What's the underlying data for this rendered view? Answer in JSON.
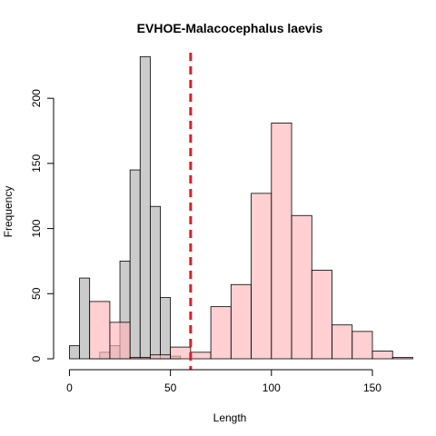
{
  "chart_data": {
    "type": "bar",
    "title": "EVHOE-Malacocephalus laevis",
    "xlabel": "Length",
    "ylabel": "Frequency",
    "xlim": [
      -2,
      168
    ],
    "ylim": [
      0,
      235
    ],
    "x_ticks": [
      0,
      50,
      100,
      150
    ],
    "y_ticks": [
      0,
      50,
      100,
      150,
      200
    ],
    "vline": {
      "x": 60,
      "color": "#e8191e",
      "style": "dashed"
    },
    "series": [
      {
        "fill": "#bebebe",
        "alpha": 0.8,
        "bins": [
          {
            "x0": 0,
            "x1": 5,
            "value": 10
          },
          {
            "x0": 5,
            "x1": 10,
            "value": 62
          },
          {
            "x0": 10,
            "x1": 15,
            "value": 0
          },
          {
            "x0": 15,
            "x1": 20,
            "value": 5
          },
          {
            "x0": 20,
            "x1": 25,
            "value": 10
          },
          {
            "x0": 25,
            "x1": 30,
            "value": 75
          },
          {
            "x0": 30,
            "x1": 35,
            "value": 145
          },
          {
            "x0": 35,
            "x1": 40,
            "value": 232
          },
          {
            "x0": 40,
            "x1": 45,
            "value": 117
          },
          {
            "x0": 45,
            "x1": 50,
            "value": 47
          },
          {
            "x0": 50,
            "x1": 55,
            "value": 2
          }
        ]
      },
      {
        "fill": "#ffb6b9",
        "alpha": 0.65,
        "bins": [
          {
            "x0": 10,
            "x1": 20,
            "value": 44
          },
          {
            "x0": 20,
            "x1": 30,
            "value": 28
          },
          {
            "x0": 30,
            "x1": 40,
            "value": 1
          },
          {
            "x0": 40,
            "x1": 50,
            "value": 3
          },
          {
            "x0": 50,
            "x1": 60,
            "value": 9
          },
          {
            "x0": 60,
            "x1": 70,
            "value": 5
          },
          {
            "x0": 70,
            "x1": 80,
            "value": 40
          },
          {
            "x0": 80,
            "x1": 90,
            "value": 57
          },
          {
            "x0": 90,
            "x1": 100,
            "value": 127
          },
          {
            "x0": 100,
            "x1": 110,
            "value": 181
          },
          {
            "x0": 110,
            "x1": 120,
            "value": 110
          },
          {
            "x0": 120,
            "x1": 130,
            "value": 68
          },
          {
            "x0": 130,
            "x1": 140,
            "value": 26
          },
          {
            "x0": 140,
            "x1": 150,
            "value": 21
          },
          {
            "x0": 150,
            "x1": 160,
            "value": 6
          },
          {
            "x0": 160,
            "x1": 170,
            "value": 1
          }
        ]
      }
    ]
  }
}
